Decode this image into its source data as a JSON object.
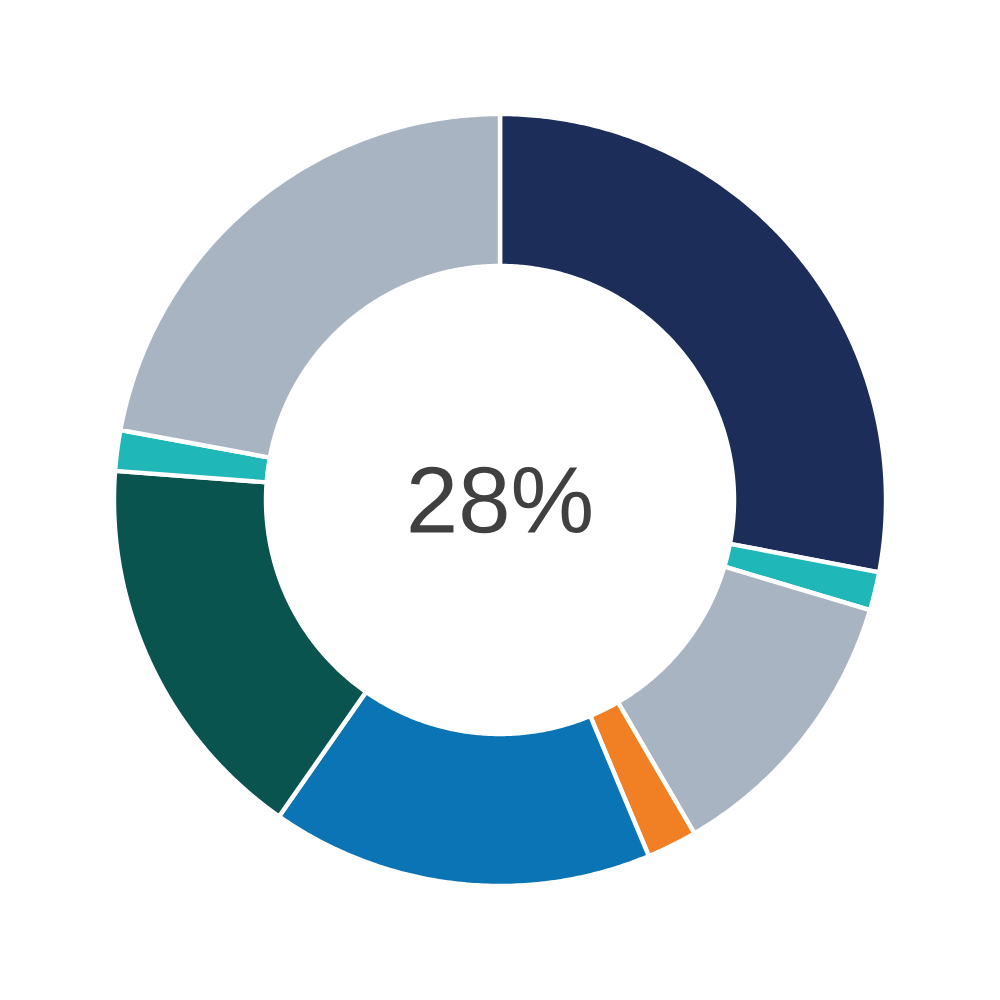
{
  "chart_data": {
    "type": "donut",
    "categories": [
      null,
      null,
      null,
      null,
      null,
      null,
      null,
      null
    ],
    "values": [
      28,
      1.6,
      12,
      2.1,
      16,
      16.5,
      1.7,
      22.1
    ],
    "colors": [
      "#1c2d5a",
      "#20b7b9",
      "#a9b4c2",
      "#f08023",
      "#0b74b5",
      "#0a5450",
      "#20b7b9",
      "#a9b4c2"
    ],
    "annotations": [
      "28%"
    ]
  }
}
